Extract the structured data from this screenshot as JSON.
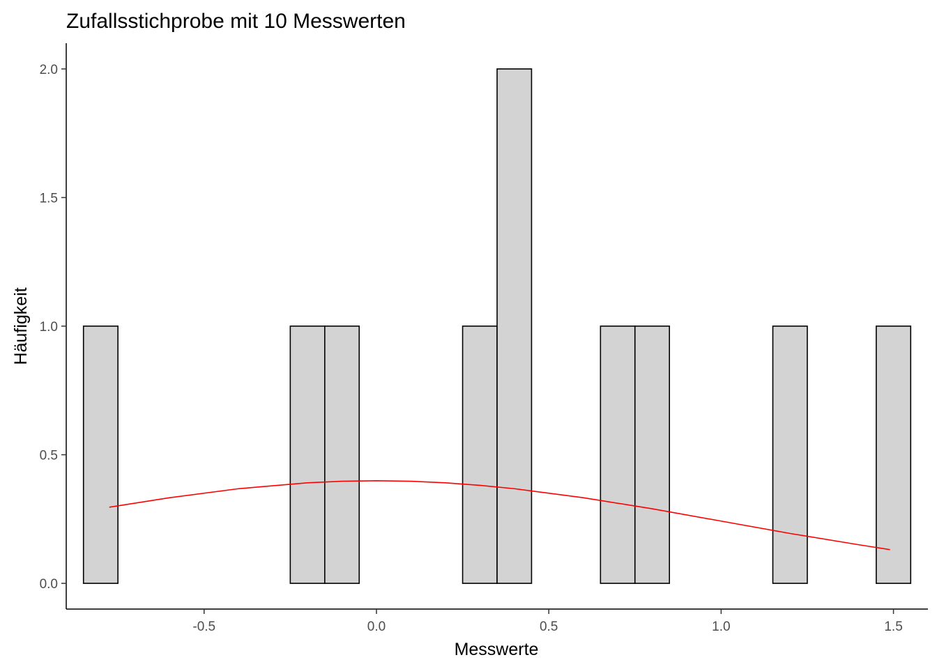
{
  "chart_data": {
    "type": "bar",
    "title": "Zufallsstichprobe mit 10 Messwerten",
    "xlabel": "Messwerte",
    "ylabel": "Häufigkeit",
    "xlim": [
      -0.9,
      1.6
    ],
    "ylim": [
      -0.1,
      2.1
    ],
    "x_ticks": [
      -0.5,
      0.0,
      0.5,
      1.0,
      1.5
    ],
    "x_tick_labels": [
      "-0.5",
      "0.0",
      "0.5",
      "1.0",
      "1.5"
    ],
    "y_ticks": [
      0.0,
      0.5,
      1.0,
      1.5,
      2.0
    ],
    "y_tick_labels": [
      "0.0",
      "0.5",
      "1.0",
      "1.5",
      "2.0"
    ],
    "bin_width": 0.1,
    "bins": [
      {
        "center": -0.8,
        "count": 1
      },
      {
        "center": -0.7,
        "count": 0
      },
      {
        "center": -0.6,
        "count": 0
      },
      {
        "center": -0.5,
        "count": 0
      },
      {
        "center": -0.4,
        "count": 0
      },
      {
        "center": -0.3,
        "count": 0
      },
      {
        "center": -0.2,
        "count": 1
      },
      {
        "center": -0.1,
        "count": 1
      },
      {
        "center": 0.0,
        "count": 0
      },
      {
        "center": 0.1,
        "count": 0
      },
      {
        "center": 0.2,
        "count": 0
      },
      {
        "center": 0.3,
        "count": 1
      },
      {
        "center": 0.4,
        "count": 2
      },
      {
        "center": 0.5,
        "count": 0
      },
      {
        "center": 0.6,
        "count": 0
      },
      {
        "center": 0.7,
        "count": 1
      },
      {
        "center": 0.8,
        "count": 1
      },
      {
        "center": 0.9,
        "count": 0
      },
      {
        "center": 1.0,
        "count": 0
      },
      {
        "center": 1.1,
        "count": 0
      },
      {
        "center": 1.2,
        "count": 1
      },
      {
        "center": 1.3,
        "count": 0
      },
      {
        "center": 1.4,
        "count": 0
      },
      {
        "center": 1.5,
        "count": 1
      }
    ],
    "curve": {
      "x": [
        -0.775,
        -0.6,
        -0.4,
        -0.2,
        -0.1,
        0.0,
        0.1,
        0.2,
        0.3,
        0.4,
        0.6,
        0.8,
        1.0,
        1.2,
        1.4,
        1.49
      ],
      "y": [
        0.296,
        0.333,
        0.368,
        0.391,
        0.397,
        0.399,
        0.397,
        0.391,
        0.381,
        0.368,
        0.333,
        0.29,
        0.242,
        0.194,
        0.15,
        0.131
      ]
    },
    "bar_fill": "#d3d3d3",
    "bar_outline": "#000000",
    "curve_color": "#ff0000",
    "grid": false,
    "legend": "none"
  }
}
